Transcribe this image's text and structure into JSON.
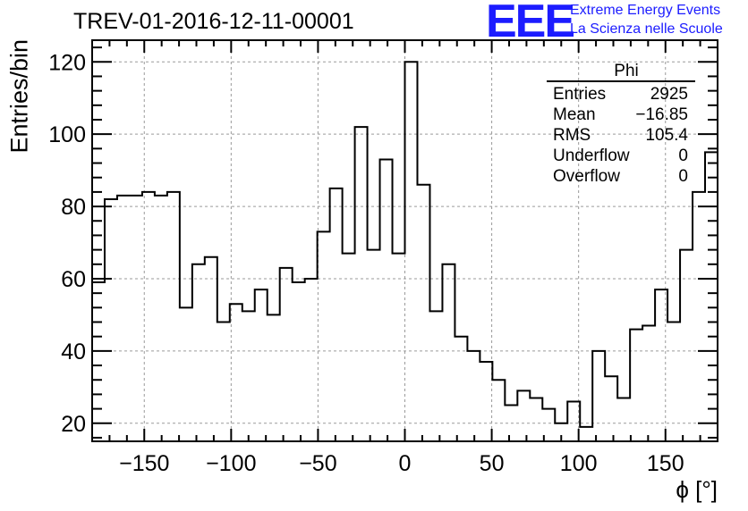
{
  "title": "TREV-01-2016-12-11-00001",
  "logo": {
    "mark": "EEE",
    "line1": "Extreme Energy Events",
    "line2": "La Scienza nelle Scuole",
    "color": "#1c1cff"
  },
  "stats": {
    "name": "Phi",
    "rows": [
      {
        "label": "Entries",
        "value": "2925"
      },
      {
        "label": "Mean",
        "value": "−16.85"
      },
      {
        "label": "RMS",
        "value": "105.4"
      },
      {
        "label": "Underflow",
        "value": "0"
      },
      {
        "label": "Overflow",
        "value": "0"
      }
    ]
  },
  "chart_data": {
    "type": "histogram",
    "title": "TREV-01-2016-12-11-00001",
    "xlabel": "ϕ [°]",
    "ylabel": "Entries/bin",
    "xlim": [
      -180,
      180
    ],
    "ylim": [
      15,
      126
    ],
    "grid": true,
    "bin_width": 7.2,
    "bin_edges_start": -180,
    "values": [
      59,
      82,
      83,
      83,
      84,
      83,
      84,
      52,
      64,
      66,
      48,
      53,
      51,
      57,
      50,
      63,
      59,
      60,
      73,
      85,
      67,
      102,
      68,
      93,
      67,
      120,
      86,
      51,
      64,
      44,
      40,
      37,
      32,
      25,
      29,
      27,
      24,
      20,
      26,
      19,
      40,
      33,
      27,
      46,
      47,
      57,
      48,
      68,
      84,
      95
    ],
    "x_ticks": [
      -150,
      -100,
      -50,
      0,
      50,
      100,
      150
    ],
    "x_tick_labels": [
      "−150",
      "−100",
      "−50",
      "0",
      "50",
      "100",
      "150"
    ],
    "y_ticks": [
      20,
      40,
      60,
      80,
      100,
      120
    ],
    "y_tick_labels": [
      "20",
      "40",
      "60",
      "80",
      "100",
      "120"
    ]
  }
}
